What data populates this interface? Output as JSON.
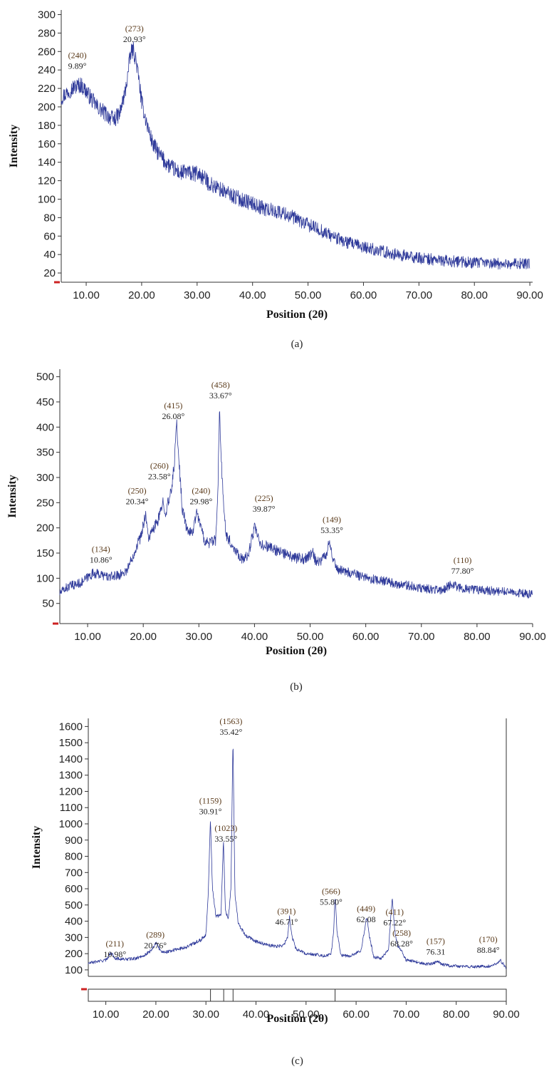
{
  "chart_data": [
    {
      "type": "line",
      "panel_label": "(a)",
      "xlabel": "Position (2θ)",
      "ylabel": "Intensity",
      "xlim": [
        5.5,
        90.5
      ],
      "ylim": [
        10,
        305
      ],
      "xticks": [
        10,
        20,
        30,
        40,
        50,
        60,
        70,
        80,
        90
      ],
      "xtick_labels": [
        "10.00",
        "20.00",
        "30.00",
        "40.00",
        "50.00",
        "60.00",
        "70.00",
        "80.00",
        "90.00"
      ],
      "yticks": [
        20,
        40,
        60,
        80,
        100,
        120,
        140,
        160,
        180,
        200,
        220,
        240,
        260,
        280,
        300
      ],
      "ytick_labels": [
        "20",
        "40",
        "60",
        "80",
        "100",
        "120",
        "140",
        "160",
        "180",
        "200",
        "220",
        "240",
        "260",
        "280",
        "300"
      ],
      "line_color": "#2f3a9a",
      "series": [
        {
          "x": [
            5.5,
            7,
            8,
            9,
            10,
            11,
            12,
            13,
            14,
            15,
            16,
            17,
            17.5,
            18,
            18.5,
            19,
            19.5,
            20,
            21,
            22,
            23,
            24,
            25,
            26,
            27,
            28,
            29,
            30,
            31,
            32,
            33,
            35,
            37,
            40,
            42,
            44,
            46,
            48,
            50,
            52,
            55,
            57,
            60,
            63,
            65,
            68,
            70,
            72,
            75,
            78,
            80,
            82,
            85,
            88,
            90
          ],
          "y": [
            210,
            218,
            222,
            224,
            217,
            208,
            200,
            195,
            190,
            186,
            192,
            215,
            235,
            258,
            262,
            250,
            230,
            205,
            180,
            160,
            150,
            142,
            136,
            132,
            128,
            130,
            127,
            128,
            124,
            118,
            114,
            108,
            102,
            95,
            90,
            87,
            84,
            78,
            72,
            67,
            58,
            53,
            48,
            44,
            41,
            38,
            36,
            35,
            33,
            32,
            31,
            31,
            30,
            30,
            30
          ],
          "noise": 9
        }
      ],
      "annotations": [
        {
          "count": "(240)",
          "pos": "9.89°",
          "x": 8.4,
          "y": 253
        },
        {
          "count": "(273)",
          "pos": "20.93°",
          "x": 18.7,
          "y": 282
        }
      ]
    },
    {
      "type": "line",
      "panel_label": "(b)",
      "xlabel": "Position (2θ)",
      "ylabel": "Intensity",
      "xlim": [
        5,
        90
      ],
      "ylim": [
        10,
        515
      ],
      "xticks": [
        10,
        20,
        30,
        40,
        50,
        60,
        70,
        80,
        90
      ],
      "xtick_labels": [
        "10.00",
        "20.00",
        "30.00",
        "40.00",
        "50.00",
        "60.00",
        "70.00",
        "80.00",
        "90.00"
      ],
      "yticks": [
        50,
        100,
        150,
        200,
        250,
        300,
        350,
        400,
        450,
        500
      ],
      "ytick_labels": [
        "50",
        "100",
        "150",
        "200",
        "250",
        "300",
        "350",
        "400",
        "450",
        "500"
      ],
      "line_color": "#2f3a9a",
      "series": [
        {
          "x": [
            5,
            6,
            7,
            8,
            9,
            10,
            11,
            12,
            13,
            14,
            15,
            16,
            17,
            18,
            19,
            19.5,
            20,
            20.4,
            20.8,
            21,
            22,
            23,
            23.6,
            24,
            25,
            25.6,
            26,
            26.5,
            27,
            28,
            29,
            29.5,
            30,
            30.5,
            31,
            32,
            33,
            33.4,
            33.7,
            34,
            34.5,
            35,
            36,
            37,
            38,
            39,
            39.5,
            40,
            40.5,
            41,
            42,
            43,
            44,
            45,
            46,
            47,
            48,
            49,
            50,
            50.5,
            51,
            52,
            53,
            53.4,
            53.8,
            54.5,
            55,
            57,
            60,
            63,
            65,
            68,
            70,
            72,
            74,
            75.5,
            77,
            80,
            83,
            85,
            88,
            90
          ],
          "y": [
            70,
            80,
            85,
            88,
            92,
            102,
            110,
            108,
            105,
            102,
            105,
            108,
            115,
            140,
            170,
            180,
            205,
            230,
            190,
            180,
            200,
            225,
            255,
            230,
            270,
            330,
            410,
            320,
            240,
            190,
            195,
            230,
            220,
            195,
            175,
            170,
            175,
            260,
            440,
            340,
            230,
            185,
            165,
            150,
            135,
            150,
            180,
            200,
            185,
            165,
            165,
            160,
            155,
            150,
            145,
            140,
            140,
            138,
            145,
            150,
            135,
            135,
            150,
            180,
            150,
            130,
            118,
            112,
            100,
            95,
            90,
            85,
            80,
            78,
            77,
            90,
            80,
            77,
            75,
            73,
            70,
            68
          ],
          "noise": 12
        }
      ],
      "annotations": [
        {
          "count": "(134)",
          "pos": "10.86°",
          "x": 12.4,
          "y": 152
        },
        {
          "count": "(250)",
          "pos": "20.34°",
          "x": 18.9,
          "y": 268
        },
        {
          "count": "(260)",
          "pos": "23.58°",
          "x": 22.9,
          "y": 318
        },
        {
          "count": "(415)",
          "pos": "26.08°",
          "x": 25.4,
          "y": 437
        },
        {
          "count": "(240)",
          "pos": "29.98°",
          "x": 30.4,
          "y": 268
        },
        {
          "count": "(458)",
          "pos": "33.67°",
          "x": 33.9,
          "y": 478
        },
        {
          "count": "(225)",
          "pos": "39.87°",
          "x": 41.7,
          "y": 253
        },
        {
          "count": "(149)",
          "pos": "53.35°",
          "x": 53.9,
          "y": 211
        },
        {
          "count": "(110)",
          "pos": "77.80°",
          "x": 77.4,
          "y": 130
        }
      ]
    },
    {
      "type": "line",
      "panel_label": "(c)",
      "xlabel": "Position (2θ)",
      "ylabel": "Intensity",
      "xlim": [
        6.5,
        90
      ],
      "ylim": [
        60,
        1650
      ],
      "xticks": [
        10,
        20,
        30,
        40,
        50,
        60,
        70,
        80,
        90
      ],
      "xtick_labels": [
        "10.00",
        "20.00",
        "30.00",
        "40.00",
        "50.00",
        "60.00",
        "70.00",
        "80.00",
        "90.00"
      ],
      "yticks": [
        100,
        200,
        300,
        400,
        500,
        600,
        700,
        800,
        900,
        1000,
        1100,
        1200,
        1300,
        1400,
        1500,
        1600
      ],
      "ytick_labels": [
        "100",
        "200",
        "300",
        "400",
        "500",
        "600",
        "700",
        "800",
        "900",
        "1000",
        "1100",
        "1200",
        "1300",
        "1400",
        "1500",
        "1600"
      ],
      "line_color": "#2f3a9a",
      "stick_positions": [
        30.91,
        33.55,
        35.42,
        55.8
      ],
      "series": [
        {
          "x": [
            6.5,
            8,
            10,
            11,
            12,
            14,
            16,
            18,
            19,
            20,
            21,
            22,
            24,
            26,
            28,
            29,
            30,
            30.5,
            30.9,
            31.3,
            32,
            33,
            33.5,
            33.9,
            34.5,
            35,
            35.4,
            35.8,
            36.5,
            38,
            40,
            42,
            44,
            45.5,
            46.3,
            46.7,
            47.2,
            48,
            50,
            52,
            54,
            55,
            55.5,
            55.8,
            56.2,
            57,
            59,
            61,
            61.6,
            62.1,
            62.6,
            63.5,
            65,
            66.5,
            67.2,
            67.8,
            68.3,
            69,
            70,
            72,
            74,
            75.5,
            76.3,
            77,
            79,
            82,
            85,
            87,
            88.3,
            88.8,
            89.3,
            90
          ],
          "y": [
            140,
            150,
            160,
            205,
            170,
            165,
            170,
            195,
            220,
            265,
            215,
            210,
            225,
            240,
            270,
            285,
            320,
            600,
            1040,
            600,
            430,
            440,
            900,
            460,
            420,
            610,
            1530,
            560,
            380,
            310,
            275,
            255,
            245,
            250,
            300,
            430,
            300,
            230,
            200,
            195,
            185,
            200,
            330,
            555,
            330,
            190,
            185,
            220,
            330,
            430,
            320,
            180,
            170,
            230,
            550,
            320,
            250,
            220,
            160,
            150,
            135,
            140,
            155,
            135,
            125,
            120,
            120,
            125,
            145,
            160,
            140,
            105
          ],
          "noise": 14
        }
      ],
      "annotations": [
        {
          "count": "(211)",
          "pos": "10.98°",
          "x": 11.8,
          "y": 245
        },
        {
          "count": "(289)",
          "pos": "20.76°",
          "x": 19.9,
          "y": 300
        },
        {
          "count": "(1159)",
          "pos": "30.91°",
          "x": 30.9,
          "y": 1125
        },
        {
          "count": "(1023)",
          "pos": "33.55°",
          "x": 34.0,
          "y": 955
        },
        {
          "count": "(1563)",
          "pos": "35.42°",
          "x": 35.0,
          "y": 1615
        },
        {
          "count": "(391)",
          "pos": "46.71°",
          "x": 46.1,
          "y": 445
        },
        {
          "count": "(566)",
          "pos": "55.80°",
          "x": 55.0,
          "y": 568
        },
        {
          "count": "(449)",
          "pos": "62.08",
          "x": 62.0,
          "y": 460
        },
        {
          "count": "(411)",
          "pos": "67.22°",
          "x": 67.7,
          "y": 440
        },
        {
          "count": "(258)",
          "pos": "68.28°",
          "x": 69.1,
          "y": 310
        },
        {
          "count": "(157)",
          "pos": "76.31",
          "x": 75.9,
          "y": 260
        },
        {
          "count": "(170)",
          "pos": "88.84°",
          "x": 86.4,
          "y": 270
        }
      ]
    }
  ]
}
